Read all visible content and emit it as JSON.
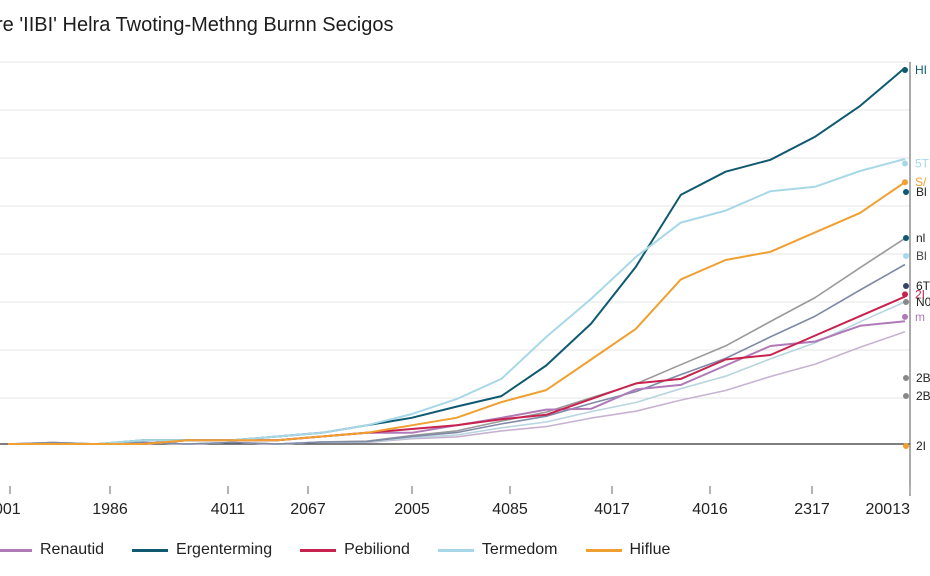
{
  "chart_data": {
    "type": "line",
    "title": "re 'IIBI' Helra Twoting-Methng Burnn Secigos",
    "xlabel": "",
    "ylabel": "",
    "x_tick_labels": [
      "001",
      "1986",
      "4011",
      "2067",
      "2005",
      "4085",
      "4017",
      "4016",
      "2317",
      "20013"
    ],
    "grid": true,
    "legend_position": "bottom",
    "series": [
      {
        "name": "Renautid",
        "color": "#b07ab8",
        "end_label": "m",
        "values": [
          0,
          0,
          0,
          0,
          0.01,
          0.01,
          0.01,
          0.02,
          0.03,
          0.03,
          0.05,
          0.07,
          0.08,
          0.1,
          0.14,
          0.17,
          0.21,
          0.25,
          0.28,
          0.31,
          0.34
        ]
      },
      {
        "name": "Ergenterming",
        "color": "#0f5a70",
        "end_label": "HI",
        "values": [
          0,
          0,
          0,
          0.01,
          0.01,
          0.01,
          0.02,
          0.03,
          0.05,
          0.07,
          0.1,
          0.14,
          0.21,
          0.31,
          0.48,
          0.66,
          0.74,
          0.76,
          0.81,
          0.91,
          1.0
        ]
      },
      {
        "name": "Pebiliond",
        "color": "#c8234f",
        "end_label": "2I",
        "values": [
          0,
          0,
          0,
          0,
          0.01,
          0.01,
          0.01,
          0.02,
          0.03,
          0.04,
          0.05,
          0.06,
          0.09,
          0.12,
          0.15,
          0.18,
          0.22,
          0.25,
          0.29,
          0.33,
          0.4
        ]
      },
      {
        "name": "Termedom",
        "color": "#a8d8e8",
        "end_label": "5T",
        "values": [
          0,
          0,
          0,
          0.01,
          0.01,
          0.01,
          0.02,
          0.03,
          0.05,
          0.08,
          0.12,
          0.18,
          0.28,
          0.4,
          0.5,
          0.58,
          0.63,
          0.67,
          0.7,
          0.73,
          0.75
        ]
      },
      {
        "name": "Hiflue",
        "color": "#f0a030",
        "end_label": "S/",
        "values": [
          0,
          0,
          0,
          0,
          0.01,
          0.01,
          0.01,
          0.02,
          0.03,
          0.05,
          0.07,
          0.1,
          0.15,
          0.22,
          0.32,
          0.44,
          0.48,
          0.52,
          0.56,
          0.63,
          0.7
        ]
      }
    ],
    "extra_end_labels": [
      {
        "text": "Bl",
        "color": "#0f5a70"
      },
      {
        "text": "nl",
        "color": "#0f5a70"
      },
      {
        "text": "Bl",
        "color": "#a8d8e8"
      },
      {
        "text": "6T",
        "color": "#334466"
      },
      {
        "text": "N0",
        "color": "#888888"
      },
      {
        "text": "2B",
        "color": "#888888"
      },
      {
        "text": "2B",
        "color": "#888888"
      },
      {
        "text": "2I",
        "color": "#f0a030"
      }
    ]
  }
}
